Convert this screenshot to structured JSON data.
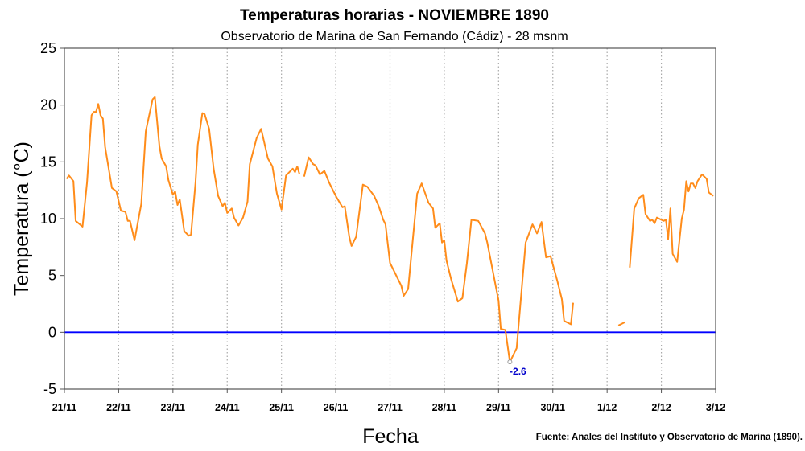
{
  "chart_data": {
    "type": "line",
    "title": "Temperaturas horarias - NOVIEMBRE 1890",
    "subtitle": "Observatorio de Marina de San Fernando (Cádiz) - 28 msnm",
    "xlabel": "Fecha",
    "ylabel": "Temperatura (°C)",
    "source": "Fuente: Anales del Instituto y Observatorio de Marina (1890).",
    "xlim": [
      "1890-11-21T00:00",
      "1890-12-03T00:00"
    ],
    "ylim": [
      -5,
      25
    ],
    "yticks": [
      "-5",
      "0",
      "5",
      "10",
      "15",
      "20",
      "25"
    ],
    "xticks": [
      "21/11",
      "22/11",
      "23/11",
      "24/11",
      "25/11",
      "26/11",
      "27/11",
      "28/11",
      "29/11",
      "30/11",
      "1/12",
      "2/12",
      "3/12"
    ],
    "grid": "vertical dotted at each day",
    "reference_line": {
      "y": 0,
      "color": "#0000ff"
    },
    "annotation": {
      "text": "-2.6",
      "x": "1890-11-29T05:00",
      "y": -2.6,
      "color": "#0000cc"
    },
    "line_color": "#ff8c1a",
    "segments": [
      [
        [
          "1890-11-21T01:00",
          13.5
        ],
        [
          "1890-11-21T02:00",
          13.8
        ],
        [
          "1890-11-21T04:00",
          13.3
        ],
        [
          "1890-11-21T05:00",
          9.8
        ],
        [
          "1890-11-21T08:00",
          9.3
        ],
        [
          "1890-11-21T10:00",
          13.2
        ],
        [
          "1890-11-21T12:00",
          19.1
        ],
        [
          "1890-11-21T13:00",
          19.4
        ],
        [
          "1890-11-21T14:00",
          19.4
        ],
        [
          "1890-11-21T15:00",
          20.1
        ],
        [
          "1890-11-21T16:00",
          19.1
        ],
        [
          "1890-11-21T17:00",
          18.8
        ],
        [
          "1890-11-21T18:00",
          16.3
        ],
        [
          "1890-11-21T21:00",
          12.7
        ],
        [
          "1890-11-21T23:00",
          12.4
        ],
        [
          "1890-11-22T01:00",
          10.7
        ],
        [
          "1890-11-22T03:00",
          10.6
        ],
        [
          "1890-11-22T04:00",
          9.8
        ],
        [
          "1890-11-22T05:00",
          9.8
        ],
        [
          "1890-11-22T07:00",
          8.1
        ],
        [
          "1890-11-22T10:00",
          11.3
        ],
        [
          "1890-11-22T12:00",
          17.7
        ],
        [
          "1890-11-22T15:00",
          20.5
        ],
        [
          "1890-11-22T16:00",
          20.7
        ],
        [
          "1890-11-22T18:00",
          16.4
        ],
        [
          "1890-11-22T19:00",
          15.3
        ],
        [
          "1890-11-22T21:00",
          14.6
        ],
        [
          "1890-11-22T22:00",
          13.4
        ],
        [
          "1890-11-23T00:00",
          12.1
        ],
        [
          "1890-11-23T01:00",
          12.4
        ],
        [
          "1890-11-23T02:00",
          11.2
        ],
        [
          "1890-11-23T03:00",
          11.7
        ],
        [
          "1890-11-23T05:00",
          8.9
        ],
        [
          "1890-11-23T07:00",
          8.5
        ],
        [
          "1890-11-23T08:00",
          8.6
        ],
        [
          "1890-11-23T10:00",
          13.2
        ],
        [
          "1890-11-23T11:00",
          16.5
        ],
        [
          "1890-11-23T13:00",
          19.3
        ],
        [
          "1890-11-23T14:00",
          19.2
        ],
        [
          "1890-11-23T16:00",
          17.9
        ],
        [
          "1890-11-23T18:00",
          14.4
        ],
        [
          "1890-11-23T20:00",
          12.0
        ],
        [
          "1890-11-23T22:00",
          11.1
        ],
        [
          "1890-11-23T23:00",
          11.4
        ],
        [
          "1890-11-24T00:00",
          10.5
        ],
        [
          "1890-11-24T02:00",
          10.9
        ],
        [
          "1890-11-24T03:00",
          10.1
        ],
        [
          "1890-11-24T05:00",
          9.4
        ],
        [
          "1890-11-24T07:00",
          10.1
        ],
        [
          "1890-11-24T09:00",
          11.5
        ],
        [
          "1890-11-24T10:00",
          14.8
        ],
        [
          "1890-11-24T13:00",
          17.1
        ],
        [
          "1890-11-24T15:00",
          17.9
        ],
        [
          "1890-11-24T18:00",
          15.3
        ],
        [
          "1890-11-24T20:00",
          14.6
        ],
        [
          "1890-11-24T22:00",
          12.2
        ],
        [
          "1890-11-25T00:00",
          10.8
        ],
        [
          "1890-11-25T02:00",
          13.8
        ],
        [
          "1890-11-25T05:00",
          14.4
        ],
        [
          "1890-11-25T06:00",
          14.1
        ],
        [
          "1890-11-25T07:00",
          14.6
        ],
        [
          "1890-11-25T08:00",
          13.9
        ]
      ],
      [
        [
          "1890-11-25T10:00",
          13.7
        ],
        [
          "1890-11-25T12:00",
          15.4
        ],
        [
          "1890-11-25T14:00",
          14.8
        ],
        [
          "1890-11-25T15:00",
          14.7
        ],
        [
          "1890-11-25T17:00",
          13.9
        ],
        [
          "1890-11-25T19:00",
          14.2
        ],
        [
          "1890-11-25T21:00",
          13.2
        ],
        [
          "1890-11-26T00:00",
          12.0
        ],
        [
          "1890-11-26T03:00",
          11.0
        ],
        [
          "1890-11-26T04:00",
          11.1
        ],
        [
          "1890-11-26T06:00",
          8.4
        ],
        [
          "1890-11-26T07:00",
          7.6
        ],
        [
          "1890-11-26T09:00",
          8.4
        ],
        [
          "1890-11-26T12:00",
          13.0
        ],
        [
          "1890-11-26T14:00",
          12.8
        ],
        [
          "1890-11-26T17:00",
          12.0
        ],
        [
          "1890-11-26T19:00",
          11.1
        ],
        [
          "1890-11-26T21:00",
          9.9
        ],
        [
          "1890-11-26T22:00",
          9.5
        ],
        [
          "1890-11-27T00:00",
          6.1
        ],
        [
          "1890-11-27T03:00",
          4.9
        ],
        [
          "1890-11-27T05:00",
          4.1
        ],
        [
          "1890-11-27T06:00",
          3.2
        ],
        [
          "1890-11-27T08:00",
          3.8
        ],
        [
          "1890-11-27T09:00",
          5.9
        ],
        [
          "1890-11-27T12:00",
          12.2
        ],
        [
          "1890-11-27T14:00",
          13.1
        ],
        [
          "1890-11-27T17:00",
          11.4
        ],
        [
          "1890-11-27T19:00",
          10.9
        ],
        [
          "1890-11-27T20:00",
          9.2
        ],
        [
          "1890-11-27T22:00",
          9.6
        ],
        [
          "1890-11-27T23:00",
          7.9
        ],
        [
          "1890-11-28T00:00",
          8.1
        ],
        [
          "1890-11-28T01:00",
          6.3
        ],
        [
          "1890-11-28T03:00",
          4.7
        ],
        [
          "1890-11-28T06:00",
          2.7
        ],
        [
          "1890-11-28T08:00",
          3.0
        ],
        [
          "1890-11-28T10:00",
          6.1
        ],
        [
          "1890-11-28T12:00",
          9.9
        ],
        [
          "1890-11-28T15:00",
          9.8
        ],
        [
          "1890-11-28T18:00",
          8.7
        ],
        [
          "1890-11-28T19:00",
          7.9
        ],
        [
          "1890-11-29T00:00",
          2.8
        ],
        [
          "1890-11-29T01:00",
          0.3
        ],
        [
          "1890-11-29T03:00",
          0.2
        ],
        [
          "1890-11-29T05:00",
          -2.6
        ],
        [
          "1890-11-29T08:00",
          -1.4
        ],
        [
          "1890-11-29T12:00",
          7.9
        ],
        [
          "1890-11-29T15:00",
          9.5
        ],
        [
          "1890-11-29T17:00",
          8.7
        ],
        [
          "1890-11-29T19:00",
          9.7
        ],
        [
          "1890-11-29T21:00",
          6.6
        ],
        [
          "1890-11-29T23:00",
          6.7
        ],
        [
          "1890-11-30T02:00",
          4.5
        ],
        [
          "1890-11-30T04:00",
          2.9
        ],
        [
          "1890-11-30T05:00",
          1.0
        ],
        [
          "1890-11-30T08:00",
          0.7
        ],
        [
          "1890-11-30T09:00",
          2.6
        ]
      ],
      [
        [
          "1890-12-01T05:00",
          0.6
        ],
        [
          "1890-12-01T08:00",
          0.9
        ]
      ],
      [
        [
          "1890-12-01T10:00",
          5.7
        ],
        [
          "1890-12-01T12:00",
          10.9
        ],
        [
          "1890-12-01T14:00",
          11.8
        ],
        [
          "1890-12-01T16:00",
          12.1
        ],
        [
          "1890-12-01T17:00",
          10.4
        ],
        [
          "1890-12-01T19:00",
          9.8
        ],
        [
          "1890-12-01T20:00",
          9.9
        ],
        [
          "1890-12-01T21:00",
          9.6
        ],
        [
          "1890-12-01T22:00",
          10.1
        ],
        [
          "1890-12-02T01:00",
          9.8
        ],
        [
          "1890-12-02T02:00",
          9.9
        ],
        [
          "1890-12-02T03:00",
          8.2
        ],
        [
          "1890-12-02T04:00",
          10.9
        ],
        [
          "1890-12-02T05:00",
          6.9
        ],
        [
          "1890-12-02T07:00",
          6.2
        ],
        [
          "1890-12-02T09:00",
          10.0
        ],
        [
          "1890-12-02T10:00",
          10.8
        ],
        [
          "1890-12-02T11:00",
          13.3
        ],
        [
          "1890-12-02T12:00",
          12.4
        ],
        [
          "1890-12-02T13:00",
          13.1
        ],
        [
          "1890-12-02T14:00",
          13.1
        ],
        [
          "1890-12-02T15:00",
          12.7
        ],
        [
          "1890-12-02T16:00",
          13.3
        ],
        [
          "1890-12-02T18:00",
          13.9
        ],
        [
          "1890-12-02T20:00",
          13.5
        ],
        [
          "1890-12-02T21:00",
          12.3
        ],
        [
          "1890-12-02T23:00",
          12.0
        ]
      ]
    ]
  }
}
